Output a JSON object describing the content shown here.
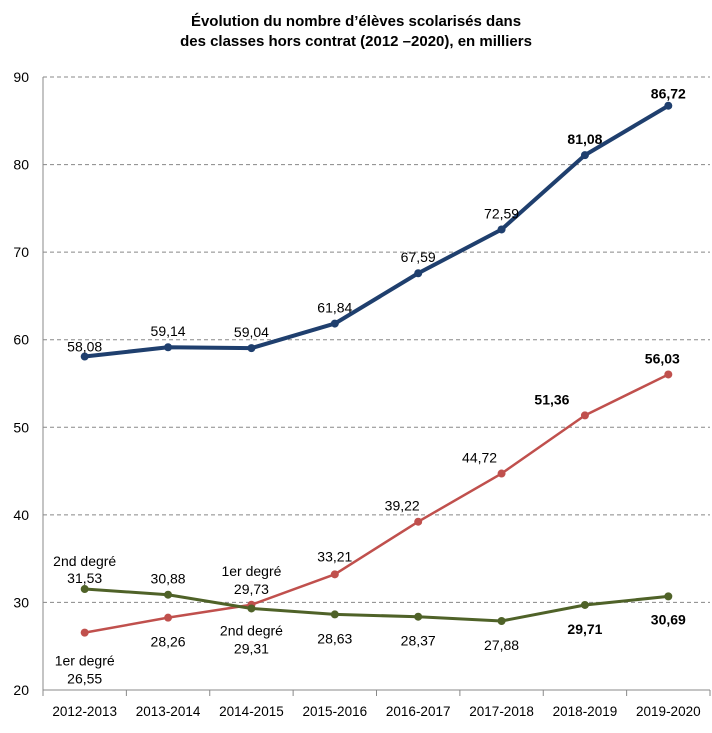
{
  "chart_data": {
    "type": "line",
    "title_line1": "Évolution du nombre d’élèves scolarisés dans",
    "title_line2": "des classes hors contrat (2012 –2020), en milliers",
    "xlabel": "",
    "ylabel": "",
    "ylim": [
      20,
      90
    ],
    "yticks": [
      20,
      30,
      40,
      50,
      60,
      70,
      80,
      90
    ],
    "grid": true,
    "categories": [
      "2012-2013",
      "2013-2014",
      "2014-2015",
      "2015-2016",
      "2016-2017",
      "2017-2018",
      "2018-2019",
      "2019-2020"
    ],
    "series": [
      {
        "key": "total",
        "color": "#1f3f6e",
        "values": [
          58.08,
          59.14,
          59.04,
          61.84,
          67.59,
          72.59,
          81.08,
          86.72
        ],
        "labels": [
          "58,08",
          "59,14",
          "59,04",
          "61,84",
          "67,59",
          "72,59",
          "81,08",
          "86,72"
        ]
      },
      {
        "key": "premier",
        "name": "1er degré",
        "color": "#c0504d",
        "values": [
          26.55,
          28.26,
          29.73,
          33.21,
          39.22,
          44.72,
          51.36,
          56.03
        ],
        "labels": [
          "26,55",
          "28,26",
          "29,73",
          "33,21",
          "39,22",
          "44,72",
          "51,36",
          "56,03"
        ]
      },
      {
        "key": "second",
        "name": "2nd degré",
        "color": "#4f6228",
        "values": [
          31.53,
          30.88,
          29.31,
          28.63,
          28.37,
          27.88,
          29.71,
          30.69
        ],
        "labels": [
          "31,53",
          "30,88",
          "29,31",
          "28,63",
          "28,37",
          "27,88",
          "29,71",
          "30,69"
        ]
      }
    ],
    "annotations": [
      "2nd degré",
      "1er degré",
      "1er degré",
      "2nd degré"
    ]
  }
}
